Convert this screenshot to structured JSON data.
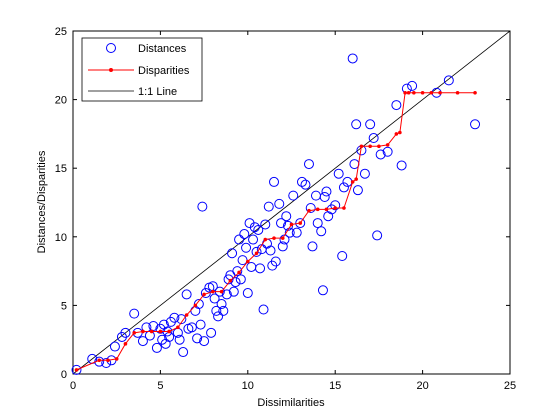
{
  "chart_data": {
    "type": "scatter",
    "title": "",
    "xlabel": "Dissimilarities",
    "ylabel": "Distances/Disparities",
    "xlim": [
      0,
      25
    ],
    "ylim": [
      0,
      25
    ],
    "xticks": [
      "0",
      "5",
      "10",
      "15",
      "20",
      "25"
    ],
    "yticks": [
      "0",
      "5",
      "10",
      "15",
      "20",
      "25"
    ],
    "grid": false,
    "legend_position": "top-left",
    "colors": {
      "distances": "#0000ff",
      "disparities": "#ff0000",
      "reference": "#000000"
    },
    "series": [
      {
        "name": "Distances",
        "mode": "markers",
        "marker": "circle",
        "x": [
          0.2,
          1.1,
          1.5,
          1.9,
          2.2,
          2.4,
          2.8,
          3.0,
          3.5,
          3.7,
          4.0,
          4.2,
          4.4,
          4.6,
          4.8,
          5.0,
          5.1,
          5.2,
          5.3,
          5.5,
          5.6,
          5.8,
          6.0,
          6.2,
          6.3,
          6.5,
          6.6,
          6.8,
          7.0,
          7.1,
          7.2,
          7.4,
          7.5,
          7.6,
          7.8,
          7.9,
          8.0,
          8.1,
          8.2,
          8.4,
          8.5,
          8.6,
          8.8,
          8.9,
          9.0,
          9.1,
          9.2,
          9.4,
          9.5,
          9.6,
          9.7,
          9.8,
          9.9,
          10.0,
          10.1,
          10.2,
          10.3,
          10.4,
          10.5,
          10.6,
          10.8,
          10.9,
          11.0,
          11.1,
          11.2,
          11.4,
          11.5,
          11.6,
          11.8,
          11.9,
          12.0,
          12.1,
          12.2,
          12.4,
          12.6,
          12.8,
          13.0,
          13.1,
          13.3,
          13.5,
          13.7,
          13.9,
          14.0,
          14.2,
          14.3,
          14.5,
          14.6,
          14.8,
          15.0,
          15.2,
          15.4,
          15.7,
          16.0,
          16.2,
          16.3,
          16.5,
          16.7,
          17.0,
          17.2,
          17.4,
          17.6,
          18.0,
          18.5,
          18.8,
          19.1,
          19.4,
          20.8,
          21.5,
          23.0,
          5.4,
          6.1,
          7.3,
          8.3,
          9.3,
          10.7,
          11.3,
          12.3,
          13.6,
          14.4,
          15.5,
          16.1
        ],
        "y": [
          0.3,
          1.1,
          0.9,
          0.8,
          1.0,
          2.0,
          2.7,
          3.0,
          4.4,
          3.0,
          2.4,
          3.4,
          2.8,
          3.5,
          1.9,
          3.3,
          2.5,
          3.6,
          2.2,
          2.7,
          3.8,
          4.1,
          3.0,
          4.0,
          1.6,
          5.8,
          3.3,
          3.4,
          4.6,
          2.6,
          5.1,
          12.2,
          2.4,
          5.9,
          6.3,
          3.0,
          6.4,
          5.5,
          4.6,
          6.0,
          5.1,
          4.6,
          5.8,
          6.9,
          7.2,
          8.8,
          6.0,
          7.5,
          9.8,
          6.9,
          8.3,
          10.2,
          9.2,
          5.9,
          11.0,
          7.8,
          9.8,
          10.7,
          8.9,
          10.5,
          9.1,
          4.7,
          10.9,
          9.5,
          12.2,
          7.9,
          14.0,
          8.2,
          12.4,
          11.0,
          9.3,
          9.8,
          11.5,
          10.3,
          13.0,
          10.3,
          11.0,
          14.0,
          13.8,
          15.3,
          9.3,
          13.0,
          11.0,
          10.4,
          6.1,
          13.3,
          11.5,
          12.0,
          12.3,
          14.6,
          8.6,
          14.0,
          23.0,
          18.2,
          13.4,
          16.3,
          14.6,
          18.2,
          17.2,
          10.1,
          16.0,
          16.2,
          19.6,
          15.2,
          20.8,
          21.0,
          20.5,
          21.4,
          18.2,
          3.1,
          2.5,
          3.6,
          4.2,
          6.7,
          7.7,
          9.0,
          10.8,
          12.1,
          12.9,
          13.6,
          15.3
        ]
      },
      {
        "name": "Disparities",
        "mode": "lines+markers",
        "x": [
          0.2,
          1.5,
          2.0,
          2.5,
          3.0,
          3.5,
          4.0,
          4.5,
          5.0,
          5.5,
          6.0,
          6.5,
          7.0,
          7.5,
          8.0,
          8.5,
          9.0,
          9.5,
          10.0,
          10.5,
          11.0,
          11.5,
          12.0,
          12.5,
          13.0,
          13.5,
          14.0,
          14.5,
          15.0,
          15.5,
          16.0,
          16.2,
          16.5,
          17.0,
          17.5,
          18.0,
          18.5,
          18.7,
          19.0,
          19.2,
          19.5,
          20.0,
          20.5,
          21.0,
          22.0,
          23.0
        ],
        "y": [
          0.3,
          1.0,
          1.0,
          1.1,
          2.2,
          3.0,
          3.1,
          3.1,
          3.1,
          3.1,
          3.4,
          4.3,
          5.0,
          5.8,
          6.0,
          6.0,
          6.8,
          7.4,
          8.2,
          8.8,
          9.8,
          9.9,
          9.9,
          10.9,
          11.0,
          11.9,
          12.0,
          12.0,
          12.1,
          12.1,
          14.0,
          14.2,
          16.6,
          16.6,
          16.6,
          16.7,
          17.5,
          17.6,
          20.5,
          20.5,
          20.5,
          20.5,
          20.5,
          20.5,
          20.5,
          20.5
        ]
      },
      {
        "name": "1:1 Line",
        "mode": "lines",
        "x": [
          0,
          25
        ],
        "y": [
          0,
          25
        ]
      }
    ]
  }
}
